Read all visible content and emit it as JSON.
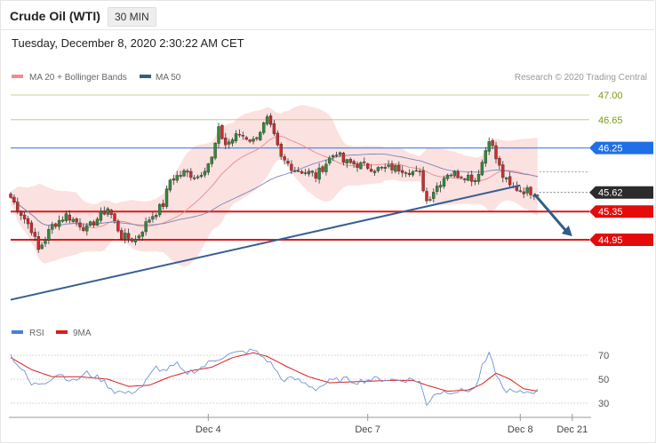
{
  "header": {
    "instrument": "Crude Oil (WTI)",
    "timeframe": "30 MIN",
    "datetime": "Tuesday, December 8, 2020 2:30:22 AM CET"
  },
  "legend": {
    "ma20": "MA 20 + Bollinger Bands",
    "ma50": "MA 50",
    "credit": "Research © 2020 Trading Central",
    "colors": {
      "ma20": "#f28b8b",
      "ma50": "#2f5d8a"
    }
  },
  "rsi_legend": {
    "rsi": "RSI",
    "ma9": "9MA",
    "colors": {
      "rsi": "#4a7fd4",
      "ma9": "#d81e1e"
    }
  },
  "chart_data": [
    {
      "type": "candlestick",
      "title": "",
      "ylim": [
        43.9,
        47.35
      ],
      "x_ticks": [
        {
          "label": "Dec 4",
          "index": 57
        },
        {
          "label": "Dec 7",
          "index": 103
        },
        {
          "label": "Dec 8",
          "index": 147
        },
        {
          "label": "Dec 21",
          "index": 162
        }
      ],
      "levels": [
        {
          "label": "47.00",
          "value": 47.0,
          "style": "olive-line"
        },
        {
          "label": "46.65",
          "value": 46.65,
          "style": "olive-line"
        },
        {
          "label": "46.25",
          "value": 46.25,
          "style": "resistance-blue"
        },
        {
          "label": "45.62",
          "value": 45.62,
          "style": "current-price"
        },
        {
          "label": "45.35",
          "value": 45.35,
          "style": "support-red"
        },
        {
          "label": "44.95",
          "value": 44.95,
          "style": "support-red"
        }
      ],
      "trendline": {
        "from": {
          "index": 0,
          "value": 44.1
        },
        "to": {
          "index": 147,
          "value": 45.72
        }
      },
      "forecast_arrow": {
        "from": {
          "index": 151,
          "value": 45.6
        },
        "to": {
          "index": 162,
          "value": 45.0
        }
      },
      "series": [
        {
          "name": "OHLC",
          "anchors": [
            [
              0,
              45.55
            ],
            [
              6,
              45.1
            ],
            [
              8,
              44.8
            ],
            [
              12,
              45.15
            ],
            [
              16,
              45.3
            ],
            [
              22,
              45.1
            ],
            [
              28,
              45.4
            ],
            [
              30,
              45.2
            ],
            [
              32,
              45.0
            ],
            [
              36,
              44.95
            ],
            [
              40,
              45.25
            ],
            [
              44,
              45.45
            ],
            [
              46,
              45.8
            ],
            [
              50,
              45.9
            ],
            [
              54,
              45.85
            ],
            [
              58,
              46.1
            ],
            [
              60,
              46.5
            ],
            [
              62,
              46.3
            ],
            [
              66,
              46.45
            ],
            [
              70,
              46.35
            ],
            [
              74,
              46.65
            ],
            [
              76,
              46.4
            ],
            [
              78,
              46.1
            ],
            [
              82,
              45.95
            ],
            [
              86,
              45.9
            ],
            [
              88,
              45.85
            ],
            [
              92,
              46.1
            ],
            [
              94,
              46.2
            ],
            [
              96,
              46.05
            ],
            [
              102,
              46.0
            ],
            [
              106,
              45.95
            ],
            [
              110,
              45.97
            ],
            [
              114,
              45.95
            ],
            [
              118,
              45.87
            ],
            [
              120,
              45.5
            ],
            [
              122,
              45.65
            ],
            [
              126,
              45.9
            ],
            [
              132,
              45.85
            ],
            [
              134,
              45.8
            ],
            [
              136,
              46.05
            ],
            [
              138,
              46.4
            ],
            [
              140,
              46.1
            ],
            [
              142,
              45.85
            ],
            [
              144,
              45.7
            ],
            [
              148,
              45.65
            ],
            [
              152,
              45.62
            ]
          ]
        },
        {
          "name": "MA 20"
        },
        {
          "name": "MA 50"
        }
      ]
    },
    {
      "type": "line",
      "ylim": [
        20,
        80
      ],
      "y_ticks": [
        30,
        50,
        70
      ],
      "series": [
        {
          "name": "RSI",
          "anchors": [
            [
              0,
              70
            ],
            [
              4,
              55
            ],
            [
              6,
              45
            ],
            [
              10,
              48
            ],
            [
              14,
              55
            ],
            [
              18,
              48
            ],
            [
              22,
              55
            ],
            [
              26,
              50
            ],
            [
              30,
              40
            ],
            [
              34,
              38
            ],
            [
              38,
              44
            ],
            [
              42,
              60
            ],
            [
              44,
              57
            ],
            [
              48,
              62
            ],
            [
              50,
              55
            ],
            [
              54,
              58
            ],
            [
              58,
              65
            ],
            [
              62,
              70
            ],
            [
              66,
              72
            ],
            [
              70,
              74
            ],
            [
              74,
              66
            ],
            [
              76,
              60
            ],
            [
              78,
              50
            ],
            [
              82,
              50
            ],
            [
              86,
              45
            ],
            [
              88,
              42
            ],
            [
              92,
              48
            ],
            [
              96,
              50
            ],
            [
              100,
              48
            ],
            [
              104,
              50
            ],
            [
              108,
              50
            ],
            [
              112,
              49
            ],
            [
              116,
              50
            ],
            [
              118,
              48
            ],
            [
              120,
              28
            ],
            [
              122,
              38
            ],
            [
              126,
              40
            ],
            [
              130,
              40
            ],
            [
              134,
              42
            ],
            [
              136,
              60
            ],
            [
              138,
              70
            ],
            [
              140,
              55
            ],
            [
              142,
              42
            ],
            [
              146,
              38
            ],
            [
              150,
              40
            ],
            [
              152,
              40
            ]
          ]
        },
        {
          "name": "9MA",
          "anchors": [
            [
              0,
              68
            ],
            [
              6,
              58
            ],
            [
              12,
              52
            ],
            [
              20,
              52
            ],
            [
              28,
              50
            ],
            [
              34,
              44
            ],
            [
              40,
              45
            ],
            [
              46,
              52
            ],
            [
              52,
              57
            ],
            [
              58,
              60
            ],
            [
              64,
              68
            ],
            [
              70,
              72
            ],
            [
              74,
              69
            ],
            [
              80,
              60
            ],
            [
              86,
              52
            ],
            [
              92,
              47
            ],
            [
              100,
              48
            ],
            [
              110,
              49
            ],
            [
              116,
              49
            ],
            [
              120,
              45
            ],
            [
              126,
              40
            ],
            [
              132,
              41
            ],
            [
              136,
              46
            ],
            [
              140,
              55
            ],
            [
              144,
              50
            ],
            [
              148,
              42
            ],
            [
              152,
              40
            ]
          ]
        }
      ]
    }
  ]
}
